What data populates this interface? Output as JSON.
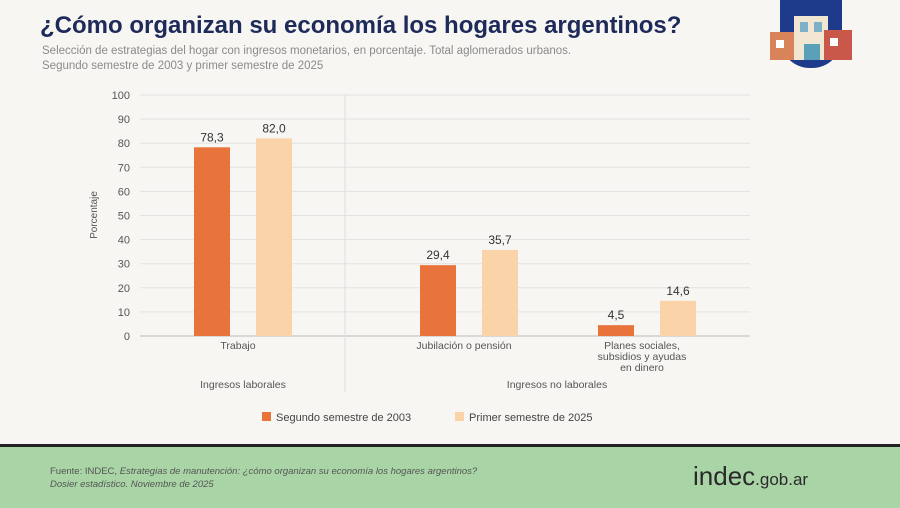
{
  "header": {
    "title": "¿Cómo organizan su economía los hogares argentinos?",
    "subtitle_line1": "Selección de estrategias del hogar con ingresos monetarios, en porcentaje. Total aglomerados urbanos.",
    "subtitle_line2": "Segundo semestre de 2003 y primer semestre de 2025"
  },
  "chart_data": {
    "type": "bar",
    "categories": [
      "Trabajo",
      "Jubilación o pensión",
      "Planes sociales, subsidios y ayudas en dinero"
    ],
    "category_lines": [
      [
        "Trabajo"
      ],
      [
        "Jubilación o pensión"
      ],
      [
        "Planes sociales,",
        "subsidios y ayudas",
        "en dinero"
      ]
    ],
    "groups": [
      {
        "label": "Ingresos laborales",
        "categories": [
          0
        ]
      },
      {
        "label": "Ingresos no laborales",
        "categories": [
          1,
          2
        ]
      }
    ],
    "series": [
      {
        "name": "Segundo semestre de 2003",
        "values": [
          78.3,
          29.4,
          4.5
        ],
        "labels": [
          "78,3",
          "29,4",
          "4,5"
        ],
        "color": "#e8743b"
      },
      {
        "name": "Primer semestre de 2025",
        "values": [
          82.0,
          35.7,
          14.6
        ],
        "labels": [
          "82,0",
          "35,7",
          "14,6"
        ],
        "color": "#fbd3a8"
      }
    ],
    "ylabel": "Porcentaje",
    "ylim": [
      0,
      100
    ],
    "yticks": [
      0,
      10,
      20,
      30,
      40,
      50,
      60,
      70,
      80,
      90,
      100
    ],
    "grid": true,
    "legend": "bottom"
  },
  "footer": {
    "source_prefix": "Fuente: INDEC, ",
    "source_title": "Estrategias de manutención: ¿cómo organizan su economía los hogares argentinos?",
    "source_line2": "Dosier estadístico. Noviembre de 2025",
    "brand": "indec",
    "brand_suffix": ".gob.ar"
  }
}
